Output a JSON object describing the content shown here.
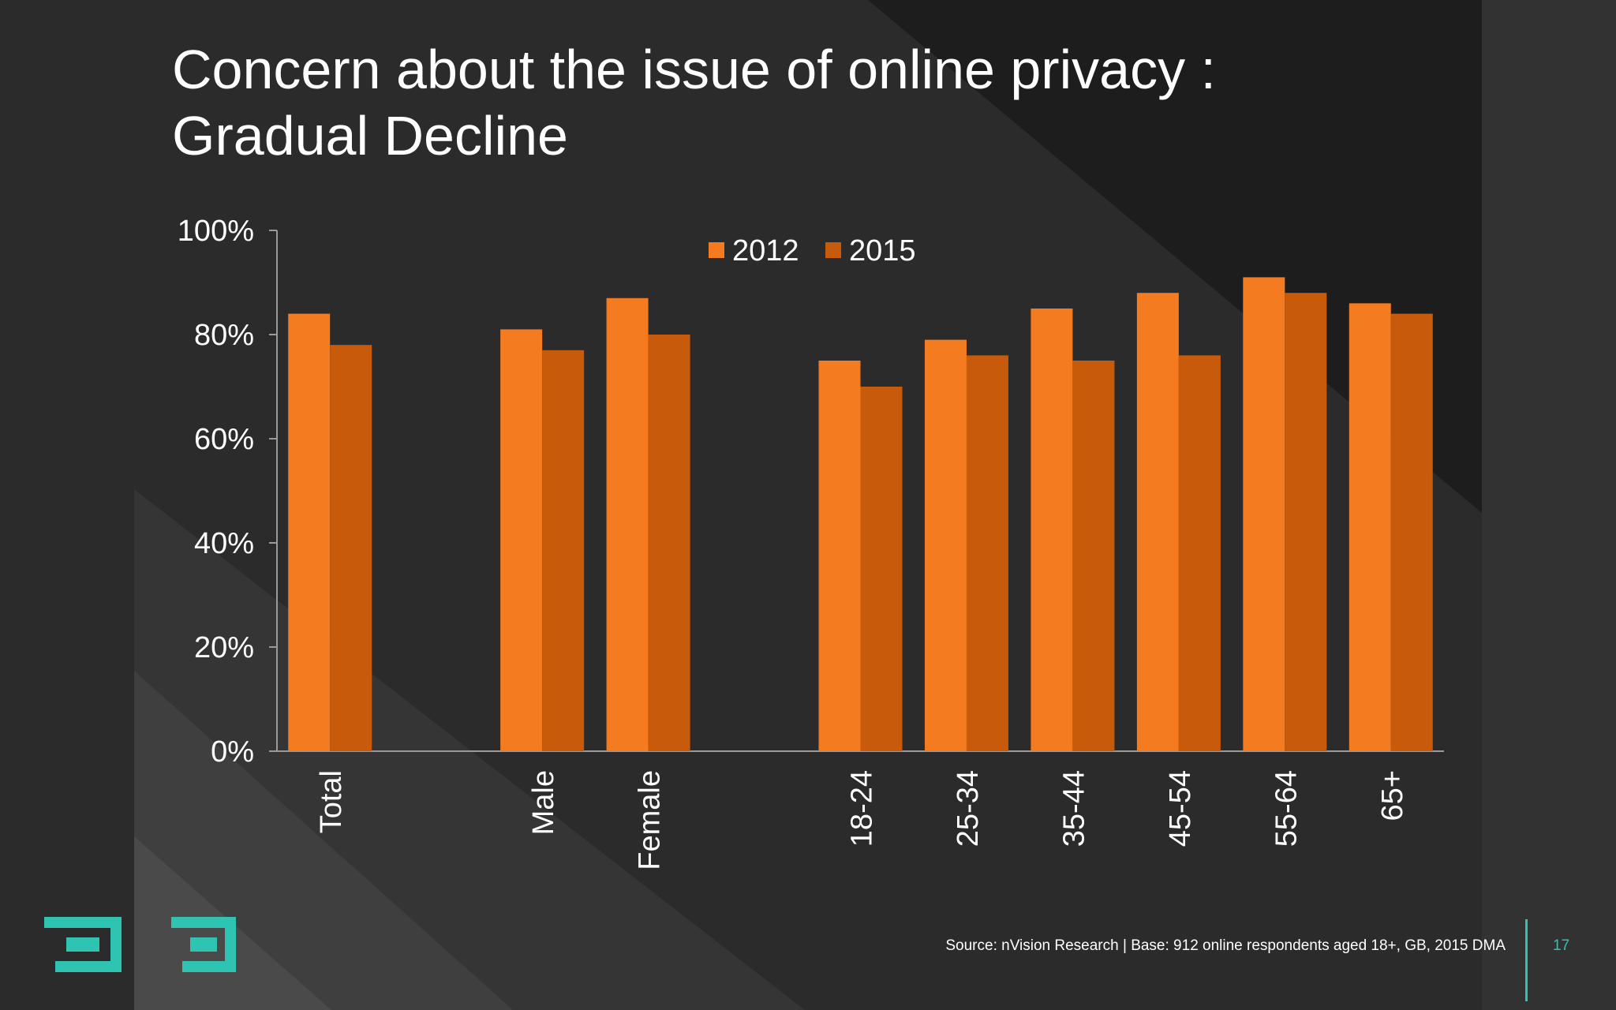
{
  "slide": {
    "title_line1": "Concern about the issue of online privacy :",
    "title_line2": "Gradual Decline",
    "source": "Source: nVision Research | Base: 912 online respondents aged 18+, GB, 2015 DMA",
    "page_number": "17"
  },
  "colors": {
    "series_2012": "#f47b20",
    "series_2015": "#c85a0c",
    "accent": "#2fc4b2"
  },
  "chart_data": {
    "type": "bar",
    "categories": [
      "Total",
      "",
      "Male",
      "Female",
      "",
      "18-24",
      "25-34",
      "35-44",
      "45-54",
      "55-64",
      "65+"
    ],
    "series": [
      {
        "name": "2012",
        "values": [
          84,
          null,
          81,
          87,
          null,
          75,
          79,
          85,
          88,
          91,
          86
        ]
      },
      {
        "name": "2015",
        "values": [
          78,
          null,
          77,
          80,
          null,
          70,
          76,
          75,
          76,
          88,
          84
        ]
      }
    ],
    "yticks": [
      "0%",
      "20%",
      "40%",
      "60%",
      "80%",
      "100%"
    ],
    "ylim": [
      0,
      100
    ],
    "legend_position": "top-center",
    "grid": false
  }
}
